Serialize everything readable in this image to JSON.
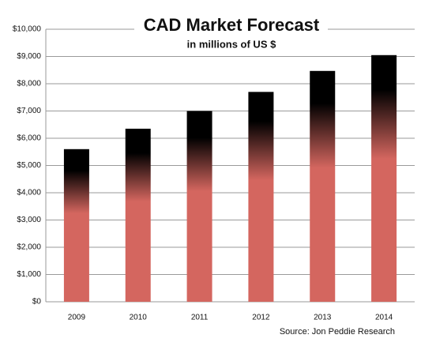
{
  "chart_data": {
    "type": "bar",
    "title": "CAD Market Forecast",
    "subtitle": "in millions of US $",
    "source": "Source: Jon Peddie Research",
    "categories": [
      "2009",
      "2010",
      "2011",
      "2012",
      "2013",
      "2014"
    ],
    "values": [
      5600,
      6350,
      7000,
      7700,
      8470,
      9050
    ],
    "color": "#d4665f",
    "ylim": [
      0,
      10000
    ],
    "yticks": [
      {
        "value": 0,
        "label": "$0"
      },
      {
        "value": 1000,
        "label": "$1,000"
      },
      {
        "value": 2000,
        "label": "$2,000"
      },
      {
        "value": 3000,
        "label": "$3,000"
      },
      {
        "value": 4000,
        "label": "$4,000"
      },
      {
        "value": 5000,
        "label": "$5,000"
      },
      {
        "value": 6000,
        "label": "$6,000"
      },
      {
        "value": 7000,
        "label": "$7,000"
      },
      {
        "value": 8000,
        "label": "$8,000"
      },
      {
        "value": 9000,
        "label": "$9,000"
      },
      {
        "value": 10000,
        "label": "$10,000"
      }
    ],
    "grid": true
  }
}
